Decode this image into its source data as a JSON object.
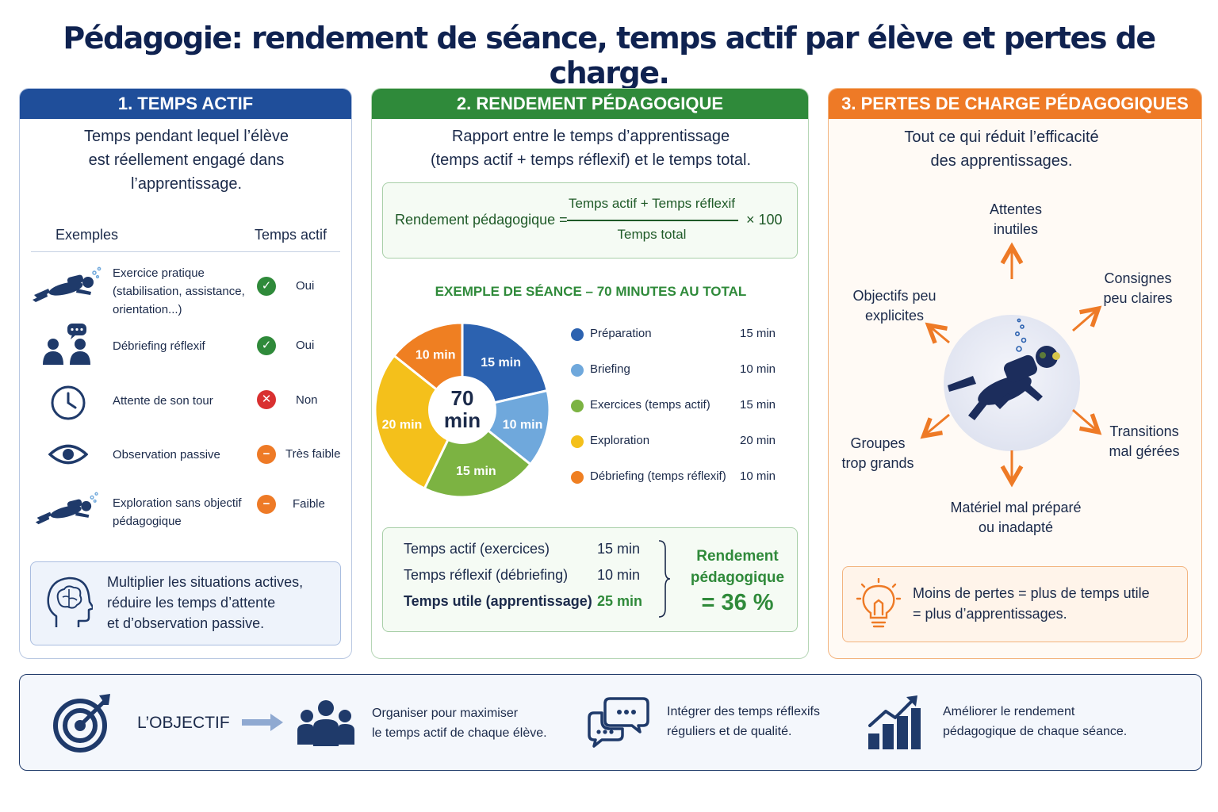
{
  "title": "Pédagogie: rendement de séance, temps actif par élève et pertes de charge.",
  "colors": {
    "navy": "#1f4e9a",
    "green": "#2f8a3a",
    "orange": "#ee7a26"
  },
  "panel1": {
    "heading": "1. TEMPS ACTIF",
    "desc": [
      "Temps pendant lequel l’élève",
      "est réellement engagé dans",
      "l’apprentissage."
    ],
    "col_examples": "Exemples",
    "col_active": "Temps actif",
    "rows": [
      {
        "icon": "diver-icon",
        "lines": [
          "Exercice pratique",
          "(stabilisation, assistance,",
          "orientation...)"
        ],
        "status": "Oui",
        "status_icon": "check-icon"
      },
      {
        "icon": "discussion-icon",
        "lines": [
          "Débriefing réflexif"
        ],
        "status": "Oui",
        "status_icon": "check-icon"
      },
      {
        "icon": "clock-icon",
        "lines": [
          "Attente de son tour"
        ],
        "status": "Non",
        "status_icon": "cross-icon"
      },
      {
        "icon": "eye-icon",
        "lines": [
          "Observation passive"
        ],
        "status": "Très faible",
        "status_icon": "minus-icon"
      },
      {
        "icon": "diver-icon",
        "lines": [
          "Exploration sans objectif",
          "pédagogique"
        ],
        "status": "Faible",
        "status_icon": "minus-icon"
      }
    ],
    "tip": [
      "Multiplier les situations actives,",
      "réduire les temps d’attente",
      "et d’observation passive."
    ]
  },
  "panel2": {
    "heading": "2. RENDEMENT PÉDAGOGIQUE",
    "desc": [
      "Rapport entre le temps d’apprentissage",
      "(temps actif + temps réflexif) et le temps total."
    ],
    "formula": {
      "label": "Rendement pédagogique =",
      "numerator": "Temps actif + Temps réflexif",
      "denominator": "Temps total",
      "factor": "× 100"
    },
    "example_title": "EXEMPLE DE SÉANCE – 70 MINUTES AU TOTAL",
    "summary": [
      {
        "label": "Temps actif (exercices)",
        "value": "15 min"
      },
      {
        "label": "Temps réflexif (débriefing)",
        "value": "10 min"
      },
      {
        "label": "Temps utile (apprentissage)",
        "value": "25 min"
      }
    ],
    "result": {
      "line1": "Rendement",
      "line2": "pédagogique",
      "value": "= 36 %"
    }
  },
  "chart_data": {
    "type": "pie",
    "center_value": "70",
    "center_unit": "min",
    "slices": [
      {
        "label": "Préparation",
        "value": 15,
        "display": "15 min",
        "color": "#2c62b0"
      },
      {
        "label": "Briefing",
        "value": 10,
        "display": "10 min",
        "color": "#6fa8dc"
      },
      {
        "label": "Exercices (temps actif)",
        "value": 15,
        "display": "15 min",
        "color": "#7cb342"
      },
      {
        "label": "Exploration",
        "value": 20,
        "display": "20 min",
        "color": "#f4c01b"
      },
      {
        "label": "Débriefing (temps réflexif)",
        "value": 10,
        "display": "10 min",
        "color": "#ef7f22"
      }
    ],
    "legend_placement": "right"
  },
  "panel3": {
    "heading": "3. PERTES DE CHARGE PÉDAGOGIQUES",
    "desc": [
      "Tout ce qui réduit l’efficacité",
      "des apprentissages."
    ],
    "causes": {
      "top": [
        "Attentes",
        "inutiles"
      ],
      "top_right": [
        "Consignes",
        "peu claires"
      ],
      "right": [
        "Transitions",
        "mal gérées"
      ],
      "bottom": [
        "Matériel mal préparé",
        "ou inadapté"
      ],
      "left": [
        "Groupes",
        "trop grands"
      ],
      "top_left": [
        "Objectifs peu",
        "explicites"
      ]
    },
    "tip": [
      "Moins de pertes = plus de temps utile",
      "= plus d’apprentissages."
    ]
  },
  "bottom": {
    "objective": "L’OBJECTIF",
    "items": [
      {
        "icon": "group-icon",
        "lines": [
          "Organiser pour maximiser",
          "le temps actif de chaque élève."
        ]
      },
      {
        "icon": "chat-icon",
        "lines": [
          "Intégrer des temps réflexifs",
          "réguliers et de qualité."
        ]
      },
      {
        "icon": "growth-chart-icon",
        "lines": [
          "Améliorer le rendement",
          "pédagogique de chaque séance."
        ]
      }
    ]
  }
}
